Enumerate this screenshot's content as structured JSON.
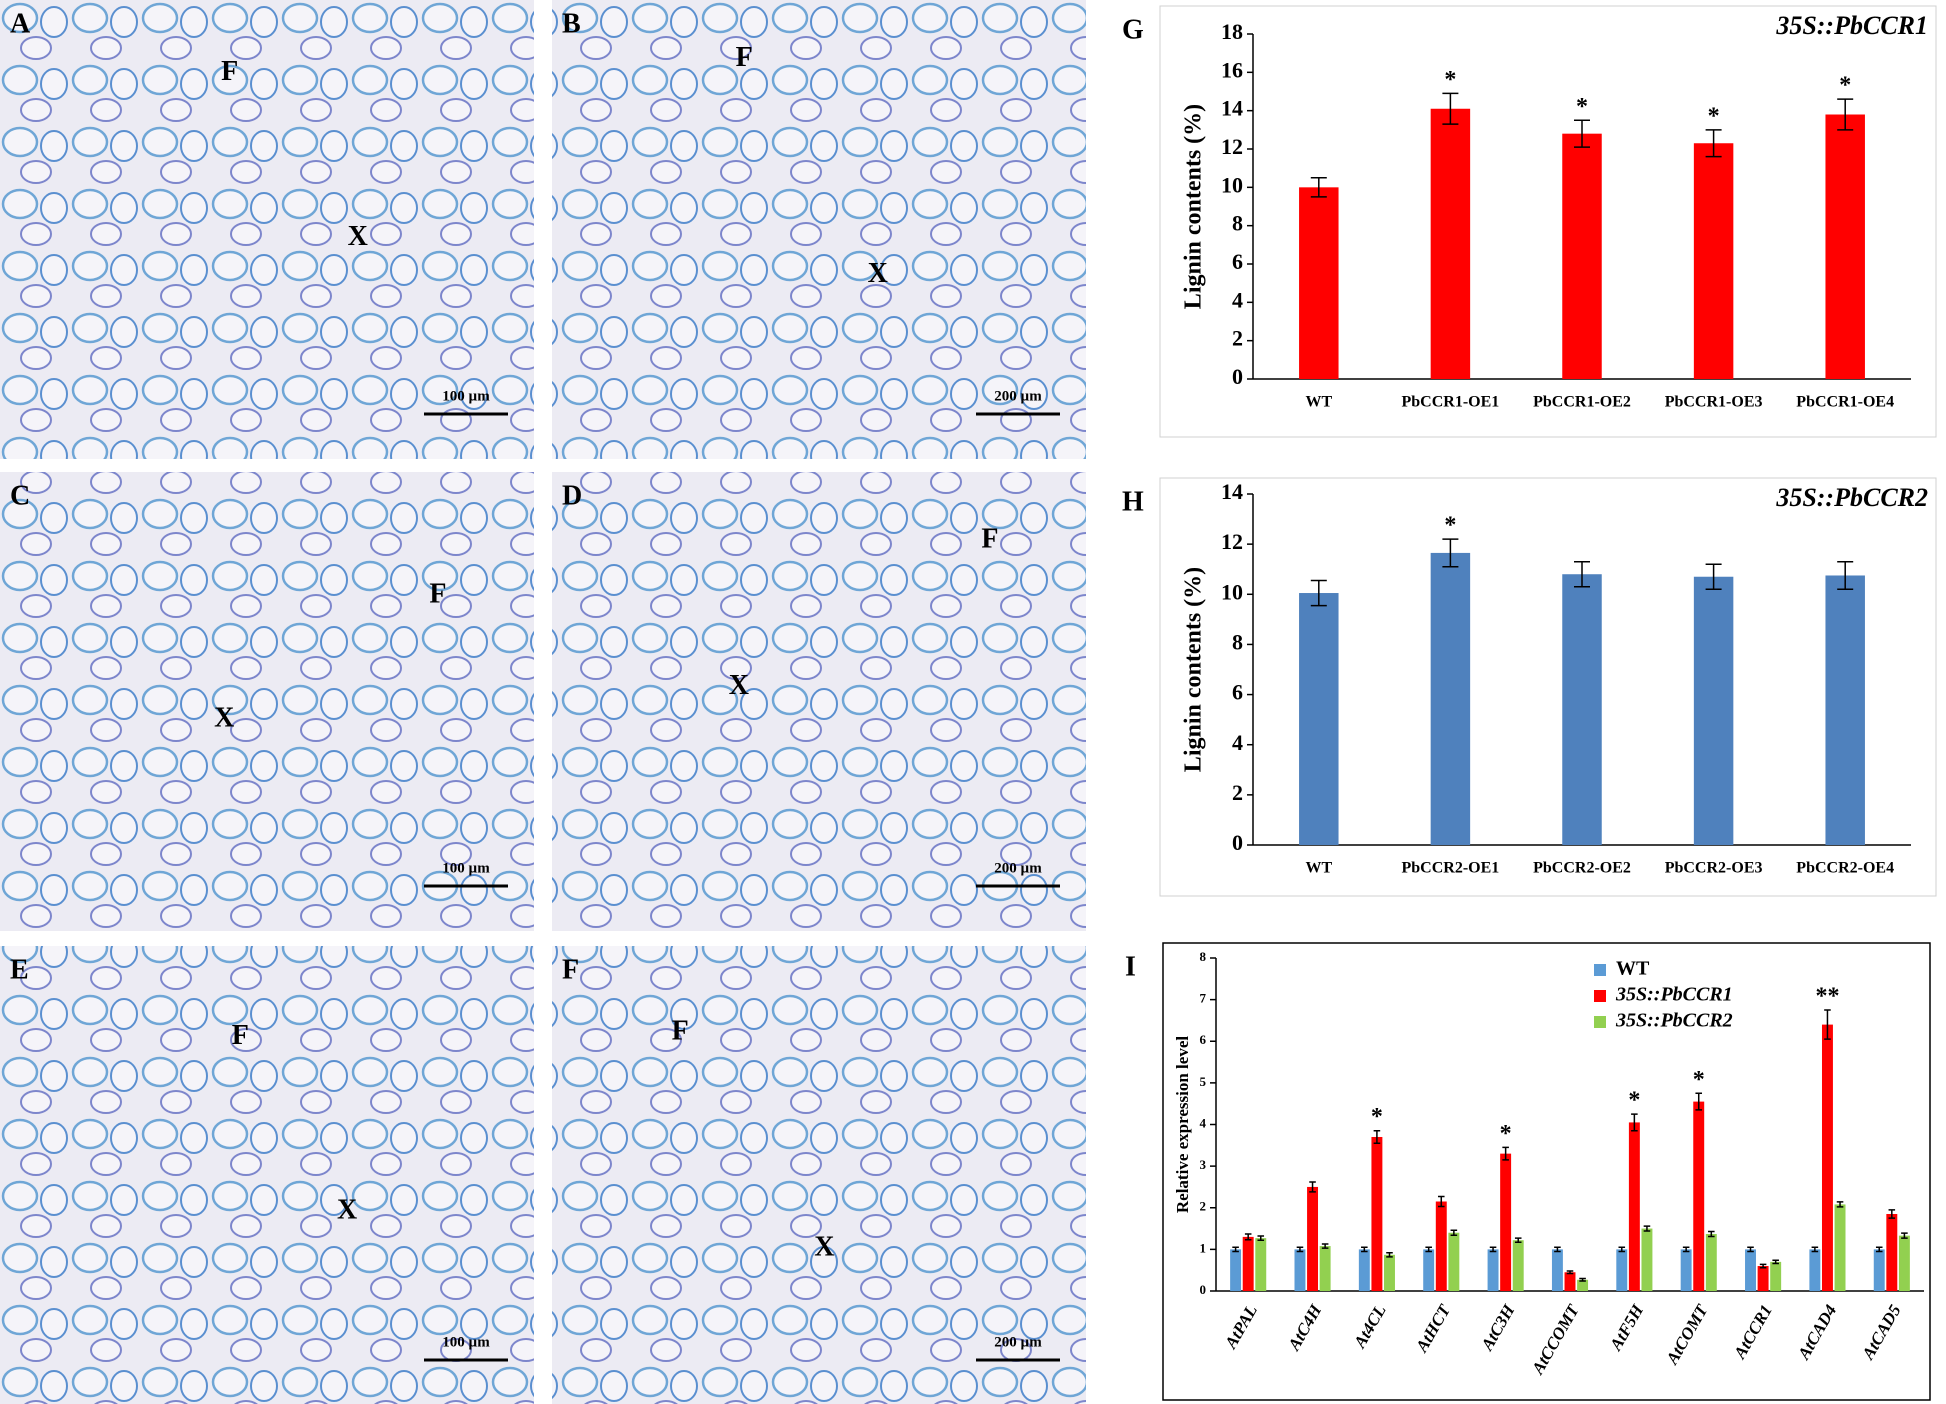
{
  "panels": [
    {
      "label": "A",
      "marks": [
        "F",
        "X"
      ],
      "scale_bar": "100 µm"
    },
    {
      "label": "B",
      "marks": [
        "F",
        "X"
      ],
      "scale_bar": "200 µm"
    },
    {
      "label": "C",
      "marks": [
        "F",
        "X"
      ],
      "scale_bar": "100 µm"
    },
    {
      "label": "D",
      "marks": [
        "F",
        "X"
      ],
      "scale_bar": "200 µm"
    },
    {
      "label": "E",
      "marks": [
        "F",
        "X"
      ],
      "scale_bar": "100 µm"
    },
    {
      "label": "F",
      "marks": [
        "F",
        "X"
      ],
      "scale_bar": "200 µm"
    }
  ],
  "chart_data": [
    {
      "type": "bar",
      "panel_label": "G",
      "title": "35S::PbCCR1",
      "y_label": "Lignin contents (%)",
      "categories": [
        "WT",
        "PbCCR1-OE1",
        "PbCCR1-OE2",
        "PbCCR1-OE3",
        "PbCCR1-OE4"
      ],
      "series": [
        {
          "color": "#ff0000",
          "values": [
            10.0,
            14.1,
            12.8,
            12.3,
            13.8
          ],
          "errors": [
            0.5,
            0.8,
            0.7,
            0.7,
            0.8
          ],
          "significance": [
            null,
            "*",
            "*",
            "*",
            "*"
          ]
        }
      ],
      "ylim": [
        0,
        18
      ],
      "yticks": [
        0,
        2,
        4,
        6,
        8,
        10,
        12,
        14,
        16,
        18
      ]
    },
    {
      "type": "bar",
      "panel_label": "H",
      "title": "35S::PbCCR2",
      "y_label": "Lignin contents (%)",
      "categories": [
        "WT",
        "PbCCR2-OE1",
        "PbCCR2-OE2",
        "PbCCR2-OE3",
        "PbCCR2-OE4"
      ],
      "series": [
        {
          "color": "#4f81bd",
          "values": [
            10.05,
            11.65,
            10.8,
            10.7,
            10.75
          ],
          "errors": [
            0.5,
            0.55,
            0.5,
            0.5,
            0.55
          ],
          "significance": [
            null,
            "*",
            null,
            null,
            null
          ]
        }
      ],
      "ylim": [
        0,
        14
      ],
      "yticks": [
        0,
        2,
        4,
        6,
        8,
        10,
        12,
        14
      ]
    },
    {
      "type": "bar",
      "panel_label": "I",
      "y_label": "Relative expression level",
      "legend": "top-right",
      "categories": [
        "AtPAL",
        "AtC4H",
        "At4CL",
        "AtHCT",
        "AtC3H",
        "AtCCOMT",
        "AtF5H",
        "AtCOMT",
        "AtCCR1",
        "AtCAD4",
        "AtCAD5"
      ],
      "series": [
        {
          "name": "WT",
          "color": "#5b9bd5",
          "values": [
            1,
            1,
            1,
            1,
            1,
            1,
            1,
            1,
            1,
            1,
            1
          ],
          "errors": [
            0.05,
            0.05,
            0.05,
            0.05,
            0.05,
            0.05,
            0.05,
            0.05,
            0.05,
            0.05,
            0.05
          ]
        },
        {
          "name": "35S::PbCCR1",
          "color": "#ff0000",
          "values": [
            1.3,
            2.5,
            3.7,
            2.15,
            3.3,
            0.45,
            4.05,
            4.55,
            0.6,
            6.4,
            1.85
          ],
          "errors": [
            0.07,
            0.12,
            0.15,
            0.12,
            0.15,
            0.03,
            0.2,
            0.2,
            0.04,
            0.35,
            0.1
          ],
          "significance": [
            null,
            null,
            "*",
            null,
            "*",
            null,
            "*",
            "*",
            null,
            "**",
            null
          ]
        },
        {
          "name": "35S::PbCCR2",
          "color": "#92d050",
          "values": [
            1.27,
            1.08,
            0.87,
            1.4,
            1.22,
            0.27,
            1.5,
            1.37,
            0.7,
            2.08,
            1.33
          ],
          "errors": [
            0.05,
            0.05,
            0.05,
            0.06,
            0.05,
            0.03,
            0.06,
            0.06,
            0.04,
            0.06,
            0.06
          ]
        }
      ],
      "ylim": [
        0,
        8
      ],
      "yticks": [
        0,
        1,
        2,
        3,
        4,
        5,
        6,
        7,
        8
      ]
    }
  ]
}
